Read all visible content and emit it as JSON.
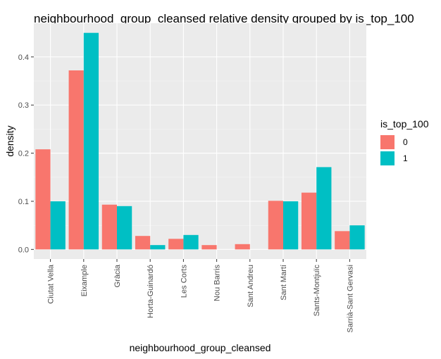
{
  "chart_data": {
    "type": "bar",
    "title": "neighbourhood_group_cleansed  relative density grouped by is_top_100",
    "xlabel": "neighbourhood_group_cleansed",
    "ylabel": "density",
    "ylim": [
      -0.02,
      0.47
    ],
    "yticks": [
      "0.0",
      "0.1",
      "0.2",
      "0.3",
      "0.4"
    ],
    "grid": true,
    "legend_position": "right",
    "categories": [
      "Ciutat Vella",
      "Eixample",
      "Gràcia",
      "Horta-Guinardó",
      "Les Corts",
      "Nou Barris",
      "Sant Andreu",
      "Sant Martí",
      "Sants-Montjuïc",
      "Sarrià-Sant Gervasi"
    ],
    "legend_title": "is_top_100",
    "series": [
      {
        "name": "0",
        "color": "#F8766D",
        "values": [
          0.208,
          0.372,
          0.093,
          0.028,
          0.022,
          0.009,
          0.011,
          0.101,
          0.118,
          0.038
        ]
      },
      {
        "name": "1",
        "color": "#00BFC4",
        "values": [
          0.1,
          0.45,
          0.09,
          0.009,
          0.03,
          null,
          null,
          0.1,
          0.171,
          0.05
        ]
      }
    ]
  }
}
